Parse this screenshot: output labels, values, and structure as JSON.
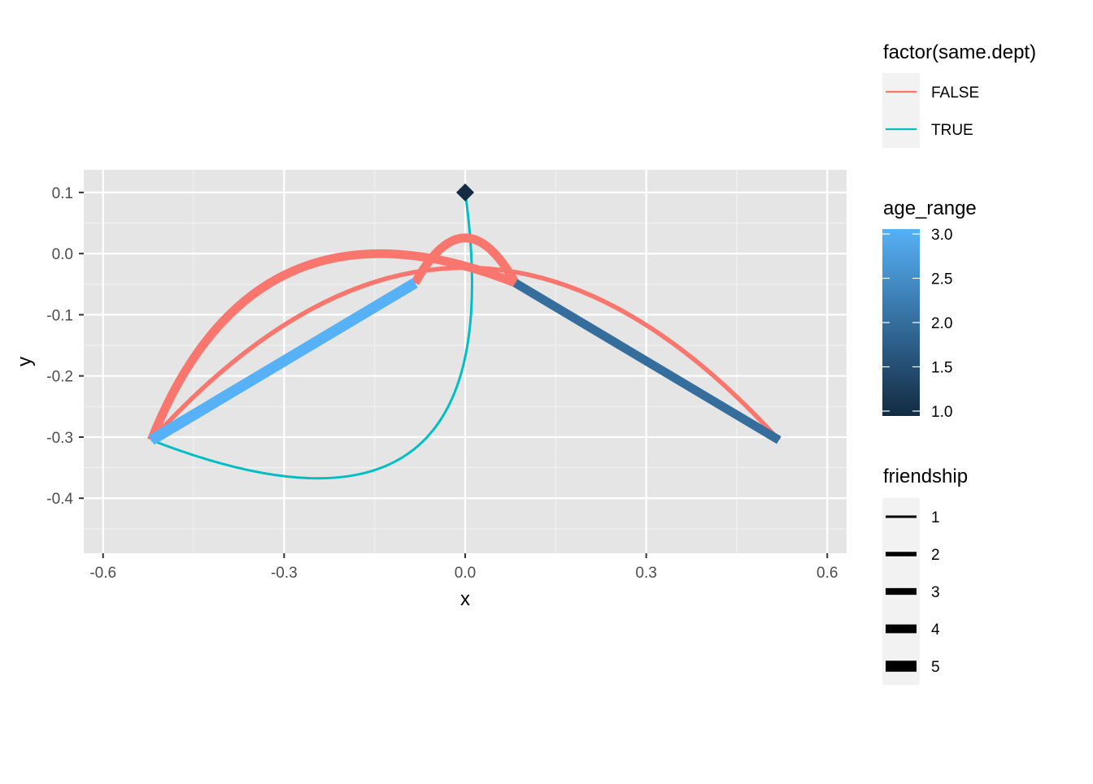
{
  "chart_data": {
    "type": "network",
    "xlabel": "x",
    "ylabel": "y",
    "xlim": [
      -0.632,
      0.632
    ],
    "ylim": [
      -0.49,
      0.137
    ],
    "x_ticks": [
      {
        "value": -0.6,
        "label": "-0.6"
      },
      {
        "value": -0.3,
        "label": "-0.3"
      },
      {
        "value": 0.0,
        "label": "0.0"
      },
      {
        "value": 0.3,
        "label": "0.3"
      },
      {
        "value": 0.6,
        "label": "0.6"
      }
    ],
    "y_ticks": [
      {
        "value": 0.1,
        "label": "0.1"
      },
      {
        "value": 0.0,
        "label": "0.0"
      },
      {
        "value": -0.1,
        "label": "-0.1"
      },
      {
        "value": -0.2,
        "label": "-0.2"
      },
      {
        "value": -0.3,
        "label": "-0.3"
      },
      {
        "value": -0.4,
        "label": "-0.4"
      }
    ],
    "grid": true,
    "panel_background": "#e5e5e5",
    "nodes": [
      {
        "x": 0.0,
        "y": 0.1,
        "shape": "diamond",
        "color": "#132b43"
      },
      {
        "x": -0.52,
        "y": -0.305
      },
      {
        "x": -0.083,
        "y": -0.048
      },
      {
        "x": 0.083,
        "y": -0.048
      },
      {
        "x": 0.52,
        "y": -0.305
      }
    ],
    "edges": [
      {
        "from": [
          0.0,
          0.1
        ],
        "to": [
          -0.52,
          -0.305
        ],
        "curvature": 0.85,
        "same_dept": "TRUE",
        "friendship": 1
      },
      {
        "from": [
          -0.52,
          -0.305
        ],
        "to": [
          0.52,
          -0.305
        ],
        "curvature": 0.55,
        "same_dept": "FALSE",
        "friendship": 2
      },
      {
        "from": [
          -0.52,
          -0.305
        ],
        "to": [
          0.083,
          -0.048
        ],
        "curvature": 0.5,
        "same_dept": "FALSE",
        "friendship": 4
      },
      {
        "from": [
          -0.083,
          -0.048
        ],
        "to": [
          0.083,
          -0.048
        ],
        "curvature": 0.9,
        "same_dept": "FALSE",
        "friendship": 4
      },
      {
        "from": [
          -0.52,
          -0.305
        ],
        "to": [
          -0.083,
          -0.048
        ],
        "curvature": 0,
        "age_range": 3.0,
        "friendship": 5
      },
      {
        "from": [
          0.083,
          -0.048
        ],
        "to": [
          0.52,
          -0.305
        ],
        "curvature": 0,
        "age_range": 2.0,
        "friendship": 4
      }
    ],
    "legends": {
      "color": {
        "title": "factor(same.dept)",
        "items": [
          {
            "label": "FALSE",
            "color": "#f8766d"
          },
          {
            "label": "TRUE",
            "color": "#00bfc4"
          }
        ]
      },
      "gradient": {
        "title": "age_range",
        "low": {
          "value": 1.0,
          "color": "#132b43"
        },
        "high": {
          "value": 3.0,
          "color": "#56b1f7"
        },
        "labels": [
          {
            "value": 3.0,
            "label": "3.0"
          },
          {
            "value": 2.5,
            "label": "2.5"
          },
          {
            "value": 2.0,
            "label": "2.0"
          },
          {
            "value": 1.5,
            "label": "1.5"
          },
          {
            "value": 1.0,
            "label": "1.0"
          }
        ]
      },
      "width": {
        "title": "friendship",
        "items": [
          {
            "label": "1",
            "value": 1
          },
          {
            "label": "2",
            "value": 2
          },
          {
            "label": "3",
            "value": 3
          },
          {
            "label": "4",
            "value": 4
          },
          {
            "label": "5",
            "value": 5
          }
        ]
      }
    }
  }
}
